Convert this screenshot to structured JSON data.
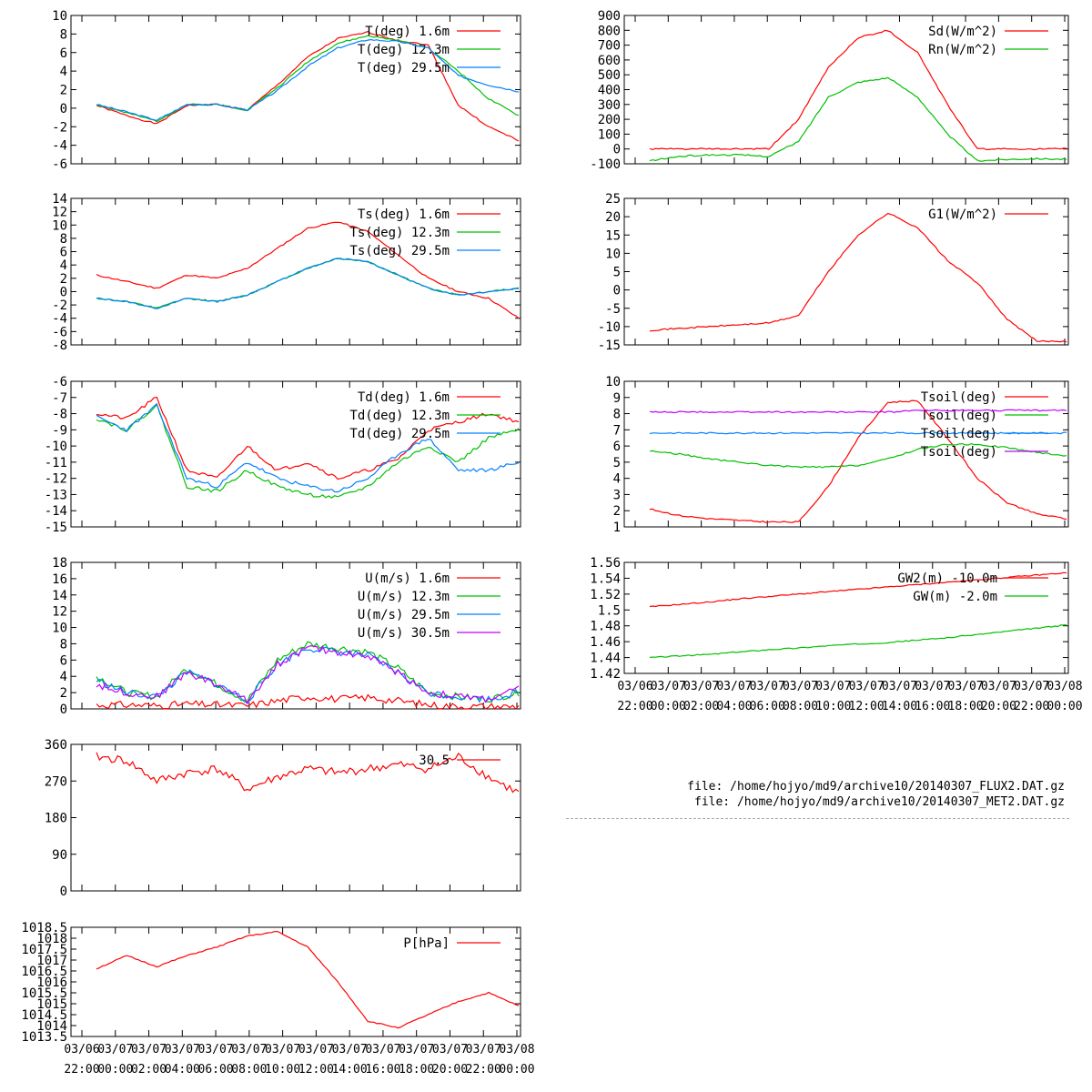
{
  "colors": {
    "red": "#ff0000",
    "green": "#00c000",
    "blue": "#0080ff",
    "purple": "#c000ff",
    "axis": "#000000"
  },
  "files": [
    "file: /home/hojyo/md9/archive10/20140307_FLUX2.DAT.gz",
    "file: /home/hojyo/md9/archive10/20140307_MET2.DAT.gz"
  ],
  "x_ticks": {
    "dates": [
      "03/06",
      "03/07",
      "03/07",
      "03/07",
      "03/07",
      "03/07",
      "03/07",
      "03/07",
      "03/07",
      "03/07",
      "03/07",
      "03/07",
      "03/07",
      "03/08"
    ],
    "times": [
      "22:00",
      "00:00",
      "02:00",
      "04:00",
      "06:00",
      "08:00",
      "10:00",
      "12:00",
      "14:00",
      "16:00",
      "18:00",
      "20:00",
      "22:00",
      "00:00"
    ]
  },
  "chart_data": [
    {
      "id": "temp",
      "type": "line",
      "ylim": [
        -6,
        10
      ],
      "yticks": [
        "10",
        "8",
        "6",
        "4",
        "2",
        "0",
        "-2",
        "-4",
        "-6"
      ],
      "series": [
        {
          "name": "T(deg)  1.6m",
          "color": "#ff0000",
          "values": [
            0.3,
            -0.8,
            -1.7,
            0.3,
            0.4,
            -0.2,
            2.5,
            5.5,
            7.5,
            8.2,
            7.3,
            6.8,
            0.3,
            -2.0,
            -3.5
          ]
        },
        {
          "name": "T(deg) 12.3m",
          "color": "#00c000",
          "values": [
            0.4,
            -0.5,
            -1.4,
            0.4,
            0.4,
            -0.2,
            2.2,
            5.0,
            7.0,
            7.8,
            7.3,
            6.5,
            4.0,
            1.0,
            -0.8
          ]
        },
        {
          "name": "T(deg) 29.5m",
          "color": "#0080ff",
          "values": [
            0.4,
            -0.4,
            -1.3,
            0.4,
            0.4,
            -0.2,
            1.9,
            4.5,
            6.5,
            7.4,
            7.2,
            6.5,
            3.5,
            2.5,
            1.8
          ]
        }
      ]
    },
    {
      "id": "ts",
      "type": "line",
      "ylim": [
        -8,
        14
      ],
      "yticks": [
        "14",
        "12",
        "10",
        "8",
        "6",
        "4",
        "2",
        "0",
        "-2",
        "-4",
        "-6",
        "-8"
      ],
      "series": [
        {
          "name": "Ts(deg)  1.6m",
          "color": "#ff0000",
          "values": [
            2.5,
            1.5,
            0.5,
            2.5,
            2.0,
            3.5,
            6.5,
            9.5,
            10.5,
            9.0,
            5.5,
            2.0,
            0.0,
            -1.0,
            -4.0
          ]
        },
        {
          "name": "Ts(deg) 12.3m",
          "color": "#00c000",
          "values": [
            -1.0,
            -1.5,
            -2.5,
            -1.0,
            -1.5,
            -0.5,
            1.5,
            3.5,
            5.0,
            4.5,
            2.5,
            0.5,
            -0.5,
            0.0,
            0.5
          ]
        },
        {
          "name": "Ts(deg) 29.5m",
          "color": "#0080ff",
          "values": [
            -1.0,
            -1.5,
            -2.5,
            -1.0,
            -1.5,
            -0.5,
            1.5,
            3.5,
            5.0,
            4.5,
            2.5,
            0.5,
            -0.5,
            0.0,
            0.5
          ]
        }
      ]
    },
    {
      "id": "td",
      "type": "line",
      "ylim": [
        -15,
        -6
      ],
      "yticks": [
        "-6",
        "-7",
        "-8",
        "-9",
        "-10",
        "-11",
        "-12",
        "-13",
        "-14",
        "-15"
      ],
      "series": [
        {
          "name": "Td(deg)  1.6m",
          "color": "#ff0000",
          "values": [
            -8.0,
            -8.3,
            -7.0,
            -11.5,
            -12.0,
            -10.0,
            -11.5,
            -11.0,
            -12.0,
            -11.5,
            -10.8,
            -9.0,
            -8.5,
            -8.0,
            -8.5
          ]
        },
        {
          "name": "Td(deg) 12.3m",
          "color": "#00c000",
          "values": [
            -8.3,
            -9.0,
            -7.5,
            -12.5,
            -12.8,
            -11.5,
            -12.5,
            -13.0,
            -13.2,
            -12.5,
            -11.0,
            -10.0,
            -11.0,
            -9.5,
            -9.0
          ]
        },
        {
          "name": "Td(deg) 29.5m",
          "color": "#0080ff",
          "values": [
            -8.2,
            -9.0,
            -7.5,
            -12.0,
            -12.5,
            -11.0,
            -12.0,
            -12.5,
            -12.8,
            -12.0,
            -10.5,
            -9.5,
            -11.5,
            -11.5,
            -11.0
          ]
        }
      ]
    },
    {
      "id": "wind",
      "type": "line",
      "ylim": [
        0,
        18
      ],
      "yticks": [
        "18",
        "16",
        "14",
        "12",
        "10",
        "8",
        "6",
        "4",
        "2",
        "0"
      ],
      "series": [
        {
          "name": "U(m/s)  1.6m",
          "color": "#ff0000",
          "values": [
            0.5,
            0.5,
            0.4,
            0.6,
            0.5,
            0.4,
            1.0,
            1.5,
            1.2,
            1.4,
            1.0,
            0.5,
            0.3,
            0.3,
            0.3
          ]
        },
        {
          "name": "U(m/s) 12.3m",
          "color": "#00c000",
          "values": [
            4.0,
            2.0,
            1.5,
            5.0,
            3.0,
            1.0,
            6.0,
            8.0,
            7.5,
            7.0,
            5.0,
            2.0,
            1.5,
            1.2,
            2.0
          ]
        },
        {
          "name": "U(m/s) 29.5m",
          "color": "#0080ff",
          "values": [
            3.5,
            2.0,
            1.5,
            4.5,
            3.0,
            1.0,
            5.5,
            7.5,
            7.0,
            6.5,
            4.5,
            2.0,
            1.5,
            1.2,
            2.0
          ]
        },
        {
          "name": "U(m/s) 30.5m",
          "color": "#c000ff",
          "values": [
            3.0,
            2.0,
            1.5,
            4.5,
            3.0,
            1.0,
            5.5,
            7.5,
            7.0,
            6.5,
            4.5,
            2.0,
            1.5,
            1.2,
            2.5
          ]
        }
      ]
    },
    {
      "id": "dir",
      "type": "line",
      "ylim": [
        0,
        360
      ],
      "yticks": [
        "360",
        "270",
        "180",
        "90",
        "0"
      ],
      "series": [
        {
          "name": "30.5",
          "color": "#ff0000",
          "values": [
            330,
            320,
            270,
            290,
            300,
            250,
            280,
            300,
            290,
            300,
            310,
            300,
            330,
            280,
            240
          ]
        }
      ]
    },
    {
      "id": "pres",
      "type": "line",
      "ylim": [
        1013.5,
        1018.5
      ],
      "yticks": [
        "1018.5",
        "1018",
        "1017.5",
        "1017",
        "1016.5",
        "1016",
        "1015.5",
        "1015",
        "1014.5",
        "1014",
        "1013.5"
      ],
      "series": [
        {
          "name": "P[hPa]",
          "color": "#ff0000",
          "values": [
            1016.6,
            1017.2,
            1016.7,
            1017.2,
            1017.6,
            1018.1,
            1018.3,
            1017.6,
            1016.0,
            1014.2,
            1013.9,
            1014.5,
            1015.1,
            1015.5,
            1014.9
          ]
        }
      ]
    },
    {
      "id": "rad",
      "type": "line",
      "ylim": [
        -100,
        900
      ],
      "yticks": [
        "900",
        "800",
        "700",
        "600",
        "500",
        "400",
        "300",
        "200",
        "100",
        "0",
        "-100"
      ],
      "series": [
        {
          "name": "Sd(W/m^2)",
          "color": "#ff0000",
          "values": [
            0,
            0,
            0,
            0,
            0,
            200,
            550,
            750,
            800,
            650,
            300,
            0,
            0,
            0,
            0
          ]
        },
        {
          "name": "Rn(W/m^2)",
          "color": "#00c000",
          "values": [
            -80,
            -50,
            -40,
            -40,
            -50,
            50,
            350,
            450,
            480,
            350,
            100,
            -80,
            -70,
            -65,
            -70
          ]
        }
      ]
    },
    {
      "id": "g1",
      "type": "line",
      "ylim": [
        -15,
        25
      ],
      "yticks": [
        "25",
        "20",
        "15",
        "10",
        "5",
        "0",
        "-5",
        "-10",
        "-15"
      ],
      "series": [
        {
          "name": "G1(W/m^2)",
          "color": "#ff0000",
          "values": [
            -11,
            -10.5,
            -10,
            -9.5,
            -9,
            -7,
            5,
            15,
            21,
            17,
            8,
            2,
            -8,
            -14,
            -14
          ]
        }
      ]
    },
    {
      "id": "tsoil",
      "type": "line",
      "ylim": [
        1,
        10
      ],
      "yticks": [
        "10",
        "9",
        "8",
        "7",
        "6",
        "5",
        "4",
        "3",
        "2",
        "1"
      ],
      "series": [
        {
          "name": "Tsoil(deg)",
          "color": "#ff0000",
          "values": [
            2.1,
            1.7,
            1.5,
            1.4,
            1.3,
            1.3,
            3.5,
            6.5,
            8.7,
            8.8,
            6.5,
            4.0,
            2.5,
            1.8,
            1.5
          ]
        },
        {
          "name": "Tsoil(deg)",
          "color": "#00c000",
          "values": [
            5.7,
            5.5,
            5.2,
            5.0,
            4.8,
            4.7,
            4.7,
            4.8,
            5.2,
            5.8,
            6.1,
            6.1,
            5.9,
            5.6,
            5.4
          ]
        },
        {
          "name": "Tsoil(deg)",
          "color": "#0080ff",
          "values": [
            6.8,
            6.8,
            6.8,
            6.8,
            6.8,
            6.8,
            6.8,
            6.8,
            6.8,
            6.8,
            6.8,
            6.8,
            6.8,
            6.8,
            6.8
          ]
        },
        {
          "name": "Tsoil(deg)",
          "color": "#c000ff",
          "values": [
            8.1,
            8.1,
            8.1,
            8.1,
            8.1,
            8.1,
            8.1,
            8.1,
            8.1,
            8.2,
            8.2,
            8.2,
            8.2,
            8.2,
            8.2
          ]
        }
      ]
    },
    {
      "id": "gw",
      "type": "line",
      "ylim": [
        1.42,
        1.56
      ],
      "yticks": [
        "1.56",
        "1.54",
        "1.52",
        "1.5",
        "1.48",
        "1.46",
        "1.44",
        "1.42"
      ],
      "series": [
        {
          "name": "GW2(m) -10.0m",
          "color": "#ff0000",
          "values": [
            1.504,
            1.507,
            1.51,
            1.514,
            1.517,
            1.52,
            1.523,
            1.526,
            1.529,
            1.532,
            1.535,
            1.538,
            1.541,
            1.544,
            1.547
          ]
        },
        {
          "name": "GW(m) -2.0m",
          "color": "#00c000",
          "values": [
            1.44,
            1.442,
            1.444,
            1.447,
            1.45,
            1.452,
            1.455,
            1.457,
            1.459,
            1.462,
            1.465,
            1.469,
            1.473,
            1.477,
            1.481
          ]
        }
      ]
    }
  ]
}
